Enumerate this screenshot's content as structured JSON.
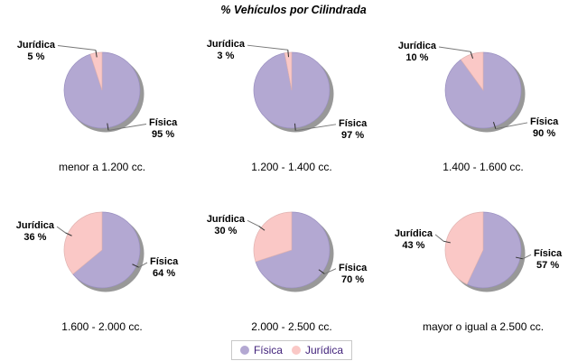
{
  "chart_data": {
    "type": "pie",
    "title": "% Vehículos por Cilindrada",
    "layout": {
      "grid": "2 rows x 3 columns of pies",
      "legend_position": "bottom-center",
      "slice_labels": "outside with leader lines and ticks",
      "shadow": true
    },
    "categories": [
      "menor a 1.200 cc.",
      "1.200 - 1.400 cc.",
      "1.400 - 1.600 cc.",
      "1.600 - 2.000 cc.",
      "2.000 - 2.500 cc.",
      "mayor o igual a 2.500 cc."
    ],
    "series": [
      {
        "name": "Física",
        "color": "#b3a8d2",
        "values": [
          95,
          97,
          90,
          64,
          70,
          57
        ]
      },
      {
        "name": "Jurídica",
        "color": "#fac8c6",
        "values": [
          5,
          3,
          10,
          36,
          30,
          43
        ]
      }
    ],
    "value_suffix": " %",
    "colors": {
      "background": "#ffffff",
      "shadow": "#989898",
      "fisica_stroke": "#9a90c0",
      "juridica_stroke": "#e0b3b1",
      "leader_line": "#777777",
      "tick": "#333333",
      "label_text": "#000000",
      "legend_text": "#40217a",
      "legend_border": "#c8c8c8"
    }
  }
}
